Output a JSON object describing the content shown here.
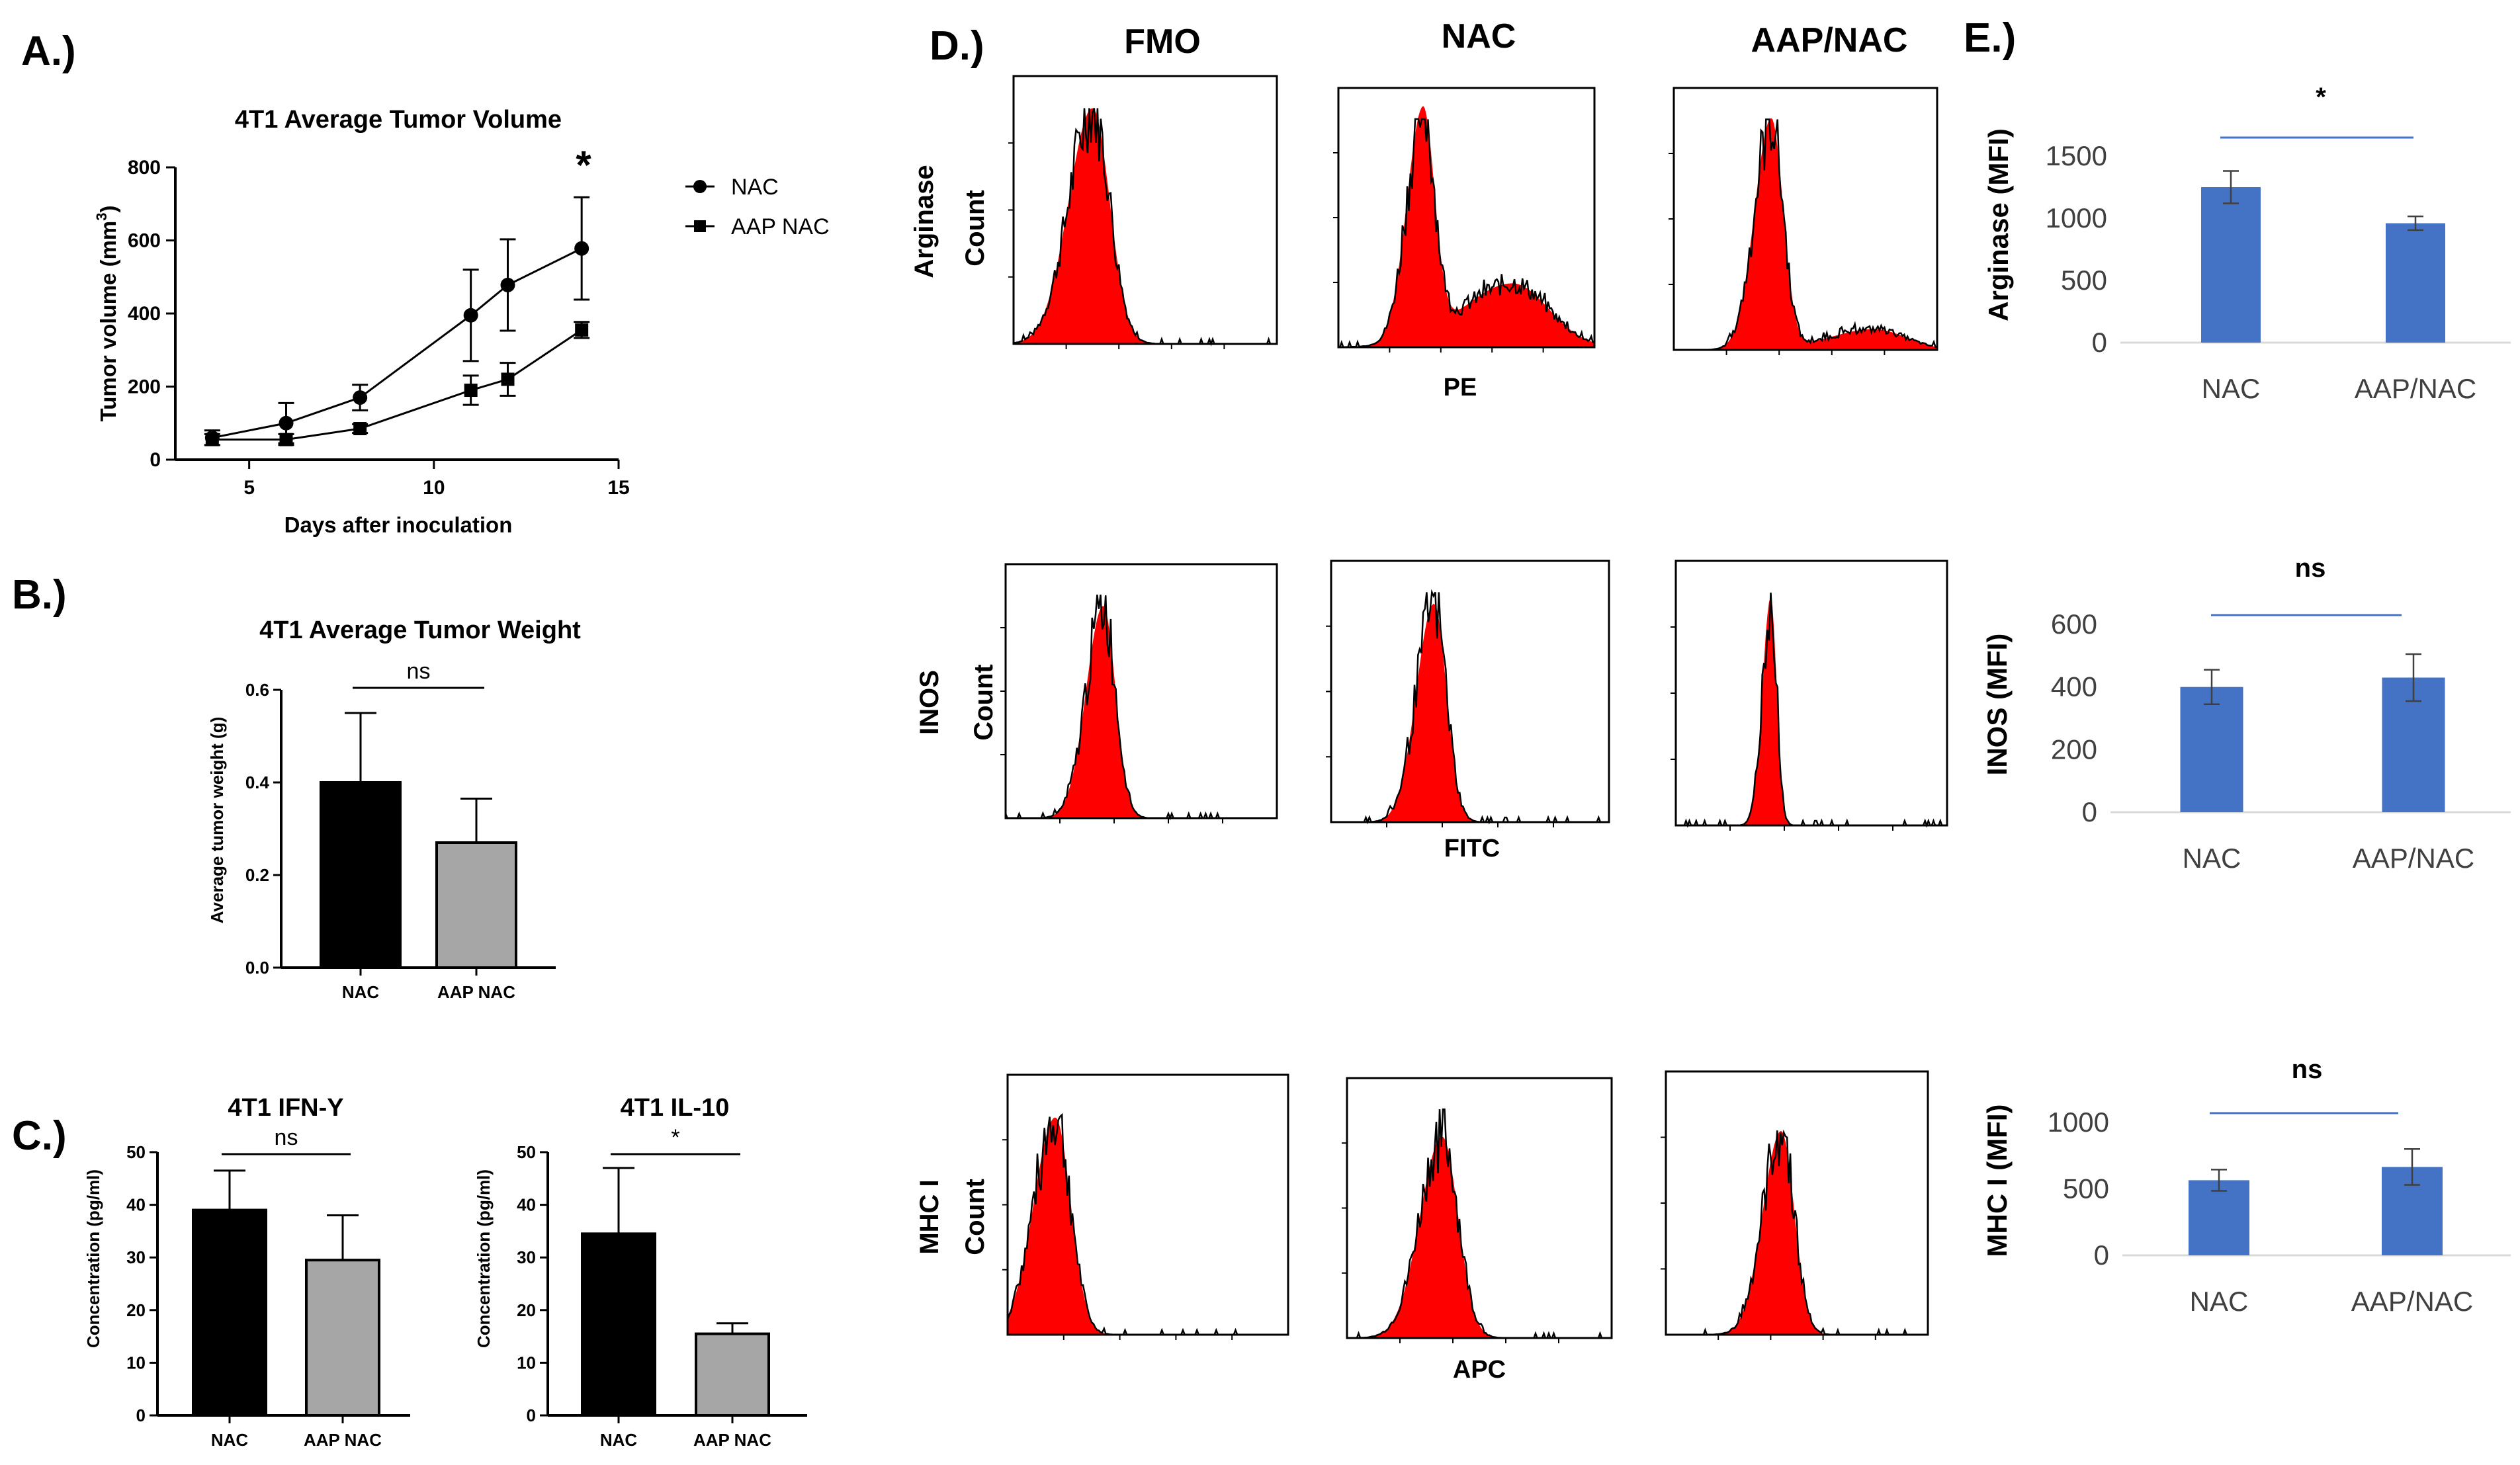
{
  "panel_labels": [
    "A.)",
    "B.)",
    "C.)",
    "D.)",
    "E.)"
  ],
  "colors": {
    "black_bar": "#000000",
    "gray_bar": "#a6a6a6",
    "blue_bar": "#4472c4",
    "histogram_fill": "#ff0000",
    "sig_line_blue": "#4472c4"
  },
  "chart_data": [
    {
      "id": "A",
      "type": "line",
      "title": "4T1 Average Tumor Volume",
      "xlabel": "Days after inoculation",
      "ylabel_main": "Tumor volume  (mm",
      "ylabel_sup": "3",
      "ylabel_end": ")",
      "x_ticks": [
        5,
        10,
        15
      ],
      "y_ticks": [
        0,
        200,
        400,
        600,
        800
      ],
      "xlim": [
        3,
        15
      ],
      "ylim": [
        0,
        800
      ],
      "series": [
        {
          "name": "NAC",
          "marker": "circle",
          "x": [
            4,
            6,
            8,
            11,
            12,
            14
          ],
          "y": [
            60,
            100,
            170,
            395,
            478,
            578
          ],
          "err": [
            20,
            55,
            35,
            125,
            125,
            140
          ]
        },
        {
          "name": "AAP NAC",
          "marker": "square",
          "x": [
            4,
            6,
            8,
            11,
            12,
            14
          ],
          "y": [
            55,
            55,
            85,
            190,
            220,
            355
          ],
          "err": [
            15,
            15,
            12,
            40,
            45,
            22
          ]
        }
      ],
      "annotation": "*"
    },
    {
      "id": "B",
      "type": "bar",
      "title": "4T1 Average Tumor Weight",
      "ylabel": "Average tumor weight (g)",
      "categories": [
        "NAC",
        "AAP NAC"
      ],
      "values": [
        0.4,
        0.27
      ],
      "err": [
        0.15,
        0.095
      ],
      "y_ticks": [
        "0.0",
        "0.2",
        "0.4",
        "0.6"
      ],
      "ylim": [
        0,
        0.6
      ],
      "significance": "ns"
    },
    {
      "id": "C1",
      "type": "bar",
      "title": "4T1 IFN-Y",
      "ylabel": "Concentration (pg/ml)",
      "categories": [
        "NAC",
        "AAP NAC"
      ],
      "values": [
        39,
        29.5
      ],
      "err": [
        7.5,
        8.5
      ],
      "y_ticks": [
        0,
        10,
        20,
        30,
        40,
        50
      ],
      "ylim": [
        0,
        50
      ],
      "significance": "ns"
    },
    {
      "id": "C2",
      "type": "bar",
      "title": "4T1 IL-10",
      "ylabel": "Concentration (pg/ml)",
      "categories": [
        "NAC",
        "AAP NAC"
      ],
      "values": [
        34.5,
        15.5
      ],
      "err": [
        12.5,
        2
      ],
      "y_ticks": [
        0,
        10,
        20,
        30,
        40,
        50
      ],
      "ylim": [
        0,
        50
      ],
      "significance": "*"
    },
    {
      "id": "D",
      "type": "histogram",
      "columns": [
        "FMO",
        "NAC",
        "AAP/NAC"
      ],
      "rows": [
        {
          "marker": "Arginase",
          "count_label": "Count",
          "channel": "PE"
        },
        {
          "marker": "INOS",
          "count_label": "Count",
          "channel": "FITC"
        },
        {
          "marker": "MHC I",
          "count_label": "Count",
          "channel": "APC"
        }
      ]
    },
    {
      "id": "E1",
      "type": "bar",
      "ylabel": "Arginase (MFI)",
      "categories": [
        "NAC",
        "AAP/NAC"
      ],
      "values": [
        1250,
        960
      ],
      "err": [
        130,
        55
      ],
      "y_ticks": [
        0,
        500,
        1000,
        1500
      ],
      "ylim": [
        0,
        1500
      ],
      "significance": "*"
    },
    {
      "id": "E2",
      "type": "bar",
      "ylabel": "INOS (MFI)",
      "categories": [
        "NAC",
        "AAP/NAC"
      ],
      "values": [
        400,
        430
      ],
      "err": [
        55,
        75
      ],
      "y_ticks": [
        0,
        200,
        400,
        600
      ],
      "ylim": [
        0,
        600
      ],
      "significance": "ns"
    },
    {
      "id": "E3",
      "type": "bar",
      "ylabel": "MHC I (MFI)",
      "categories": [
        "NAC",
        "AAP/NAC"
      ],
      "values": [
        565,
        665
      ],
      "err": [
        80,
        135
      ],
      "y_ticks": [
        0,
        500,
        1000
      ],
      "ylim": [
        0,
        1000
      ],
      "significance": "ns"
    }
  ]
}
